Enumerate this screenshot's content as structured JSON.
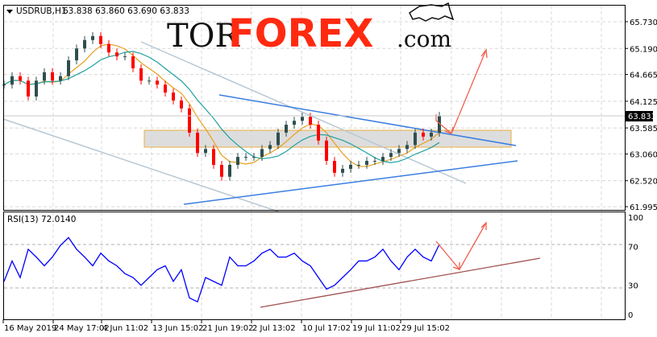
{
  "header": {
    "symbol": "USDRUB,H1",
    "ohlc": "63.838 63.860 63.690 63.833",
    "menu_icon": "triangle-down-icon"
  },
  "logo": {
    "part1": "TOR",
    "part2": "FOREX",
    "part3": ".com",
    "icon": "bull-icon"
  },
  "colors": {
    "bull_candle": "#2f4f4f",
    "bear_candle": "#ff0000",
    "ma_fast": "#e8a020",
    "ma_slow": "#20a0a0",
    "rsi": "#0000ff",
    "trend_blue": "#3a7ee0",
    "channel_gray": "#b8c8d4",
    "arrow": "#f06050",
    "zone": "#e8a020",
    "rsi_trend": "#a05050"
  },
  "chart_data": [
    {
      "type": "candlestick",
      "title": "USDRUB,H1",
      "y_ticks": [
        "65.730",
        "65.190",
        "64.665",
        "64.125",
        "63.585",
        "63.060",
        "62.520",
        "61.995"
      ],
      "current_price": "63.833",
      "ylim": [
        61.995,
        65.73
      ],
      "x_ticks": [
        "16 May 2019",
        "24 May 17:02",
        "4 Jun 11:02",
        "13 Jun 15:02",
        "21 Jun 19:02",
        "2 Jul 13:02",
        "10 Jul 17:02",
        "19 Jul 11:02",
        "29 Jul 15:02"
      ],
      "close": [
        64.46,
        64.63,
        64.54,
        64.22,
        64.54,
        64.71,
        64.54,
        64.63,
        64.95,
        65.19,
        65.36,
        65.44,
        65.28,
        65.11,
        65.03,
        65.03,
        64.79,
        64.54,
        64.54,
        64.46,
        64.3,
        64.14,
        63.98,
        63.49,
        63.08,
        63.16,
        62.84,
        62.6,
        62.84,
        63.0,
        63.0,
        63.0,
        63.16,
        63.24,
        63.49,
        63.65,
        63.73,
        63.81,
        63.65,
        63.33,
        62.92,
        62.68,
        62.76,
        62.84,
        62.84,
        62.92,
        62.92,
        63.0,
        63.08,
        63.16,
        63.24,
        63.49,
        63.41,
        63.49,
        63.83
      ],
      "grid": true
    },
    {
      "type": "line",
      "title": "RSI(13) 72.0140",
      "y_ticks": [
        "100",
        "70",
        "30",
        "0"
      ],
      "ylim": [
        0,
        100
      ],
      "levels": [
        70,
        30
      ],
      "values": [
        34,
        55,
        38,
        67,
        59,
        50,
        59,
        71,
        79,
        67,
        59,
        50,
        63,
        55,
        50,
        42,
        38,
        30,
        38,
        46,
        50,
        34,
        46,
        17,
        13,
        38,
        34,
        30,
        59,
        50,
        50,
        55,
        63,
        67,
        59,
        59,
        63,
        55,
        50,
        38,
        26,
        30,
        38,
        46,
        55,
        55,
        59,
        67,
        55,
        46,
        59,
        67,
        59,
        55,
        72
      ],
      "grid": true
    }
  ]
}
